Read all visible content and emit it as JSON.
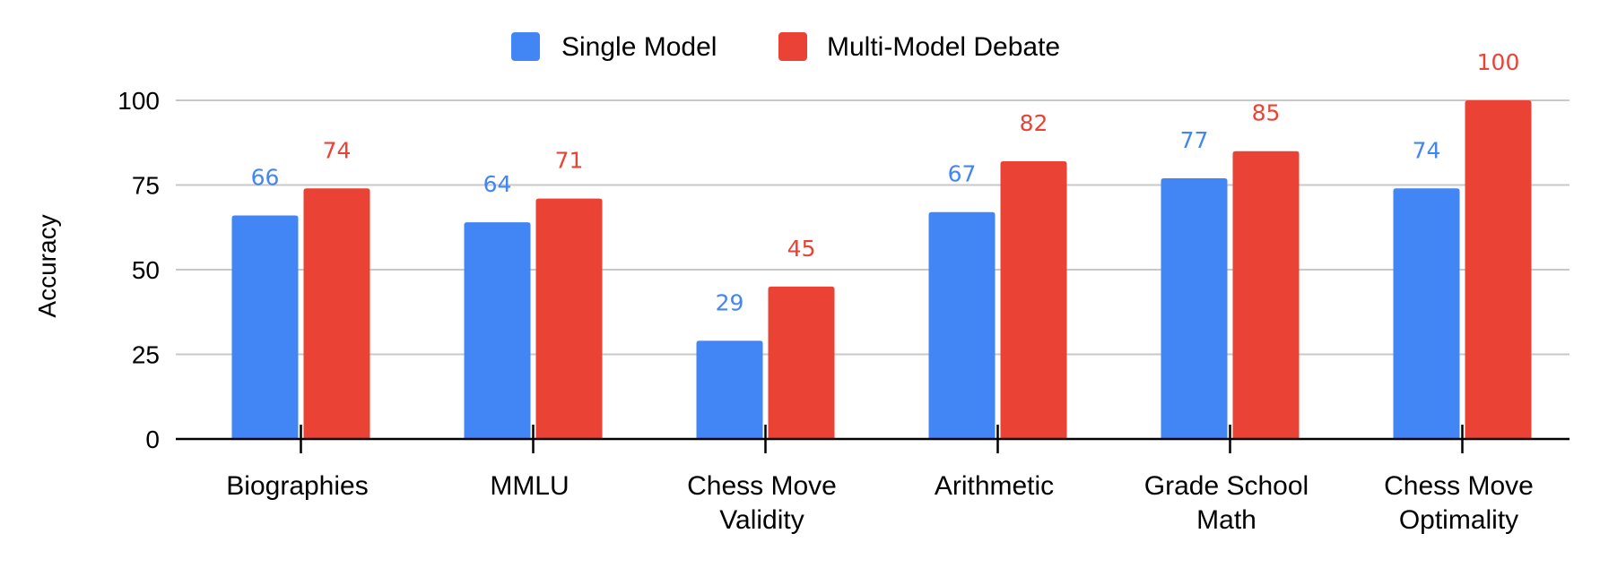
{
  "chart_data": {
    "type": "bar",
    "title": "",
    "xlabel": "",
    "ylabel": "Accuracy",
    "ylim": [
      0,
      100
    ],
    "yticks": [
      0,
      25,
      50,
      75,
      100
    ],
    "grid": true,
    "legend_position": "top-center",
    "categories": [
      [
        "Biographies"
      ],
      [
        "MMLU"
      ],
      [
        "Chess Move",
        "Validity"
      ],
      [
        "Arithmetic"
      ],
      [
        "Grade School",
        "Math"
      ],
      [
        "Chess Move",
        "Optimality"
      ]
    ],
    "series": [
      {
        "name": "Single Model",
        "color": "#4285F4",
        "values": [
          66,
          64,
          29,
          67,
          77,
          74
        ]
      },
      {
        "name": "Multi-Model Debate",
        "color": "#EA4335",
        "values": [
          74,
          71,
          45,
          82,
          85,
          100
        ]
      }
    ]
  }
}
